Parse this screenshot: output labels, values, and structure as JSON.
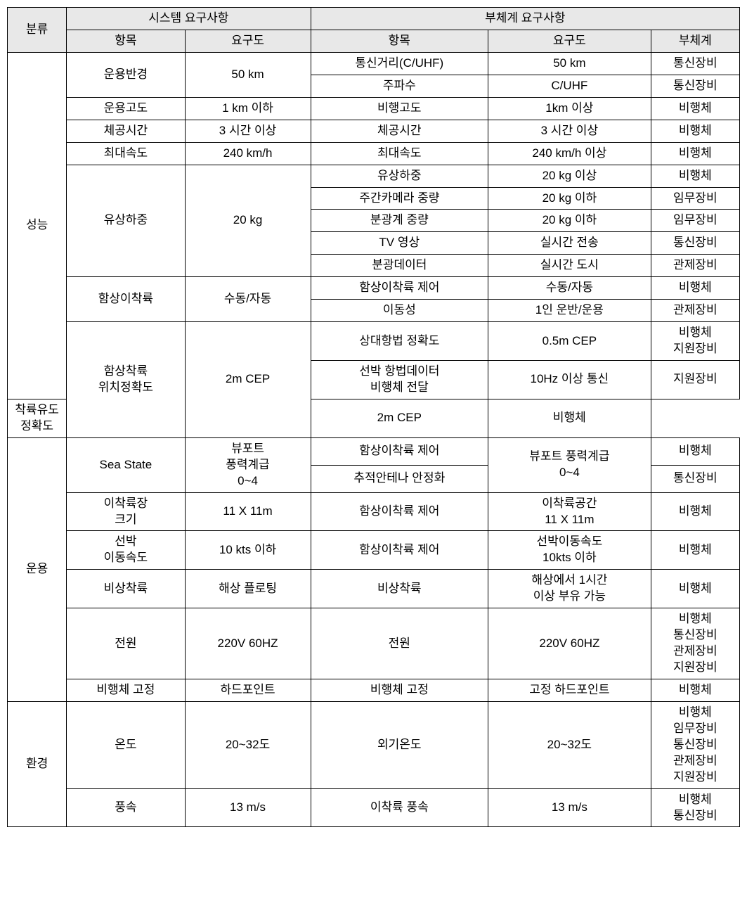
{
  "header": {
    "category": "분류",
    "system_req": "시스템 요구사항",
    "subsystem_req": "부체계 요구사항",
    "item": "항목",
    "req": "요구도",
    "subsystem": "부체계"
  },
  "cat_perf": "성능",
  "cat_ops": "운용",
  "cat_env": "환경",
  "r": {
    "p1_sys_item": "운용반경",
    "p1_sys_req": "50 km",
    "p1a": "통신거리(C/UHF)",
    "p1a_req": "50 km",
    "p1a_sub": "통신장비",
    "p1b": "주파수",
    "p1b_req": "C/UHF",
    "p1b_sub": "통신장비",
    "p2_sys_item": "운용고도",
    "p2_sys_req": "1 km 이하",
    "p2": "비행고도",
    "p2_req": "1km 이상",
    "p2_sub": "비행체",
    "p3_sys_item": "체공시간",
    "p3_sys_req": "3 시간 이상",
    "p3": "체공시간",
    "p3_req": "3 시간 이상",
    "p3_sub": "비행체",
    "p4_sys_item": "최대속도",
    "p4_sys_req": "240 km/h",
    "p4": "최대속도",
    "p4_req": "240 km/h 이상",
    "p4_sub": "비행체",
    "p5_sys_item": "유상하중",
    "p5_sys_req": "20 kg",
    "p5a": "유상하중",
    "p5a_req": "20 kg 이상",
    "p5a_sub": "비행체",
    "p5b": "주간카메라 중량",
    "p5b_req": "20 kg 이하",
    "p5b_sub": "임무장비",
    "p5c": "분광계 중량",
    "p5c_req": "20 kg 이하",
    "p5c_sub": "임무장비",
    "p5d": "TV 영상",
    "p5d_req": "실시간 전송",
    "p5d_sub": "통신장비",
    "p5e": "분광데이터",
    "p5e_req": "실시간 도시",
    "p5e_sub": "관제장비",
    "p6_sys_item": "함상이착륙",
    "p6_sys_req": "수동/자동",
    "p6a": "함상이착륙 제어",
    "p6a_req": "수동/자동",
    "p6a_sub": "비행체",
    "p6b": "이동성",
    "p6b_req": "1인 운반/운용",
    "p6b_sub": "관제장비",
    "p7_sys_item": "함상착륙\n위치정확도",
    "p7_sys_req": "2m CEP",
    "p7a": "상대항법 정확도",
    "p7a_req": "0.5m CEP",
    "p7a_sub": "비행체\n지원장비",
    "p7b": "선박 항법데이터\n비행체 전달",
    "p7b_req": "10Hz 이상 통신",
    "p7b_sub": "지원장비",
    "p7c": "착륙유도 정확도",
    "p7c_req": "2m CEP",
    "p7c_sub": "비행체",
    "o1_sys_item": "Sea State",
    "o1_sys_req": "뷰포트\n풍력계급\n0~4",
    "o1a": "함상이착륙 제어",
    "o1_req": "뷰포트 풍력계급\n0~4",
    "o1a_sub": "비행체",
    "o1b": "추적안테나 안정화",
    "o1b_sub": "통신장비",
    "o2_sys_item": "이착륙장\n크기",
    "o2_sys_req": "11 X 11m",
    "o2": "함상이착륙 제어",
    "o2_req": "이착륙공간\n11 X 11m",
    "o2_sub": "비행체",
    "o3_sys_item": "선박\n이동속도",
    "o3_sys_req": "10 kts 이하",
    "o3": "함상이착륙 제어",
    "o3_req": "선박이동속도\n10kts 이하",
    "o3_sub": "비행체",
    "o4_sys_item": "비상착륙",
    "o4_sys_req": "해상  플로팅",
    "o4": "비상착륙",
    "o4_req": "해상에서 1시간\n이상 부유 가능",
    "o4_sub": "비행체",
    "o5_sys_item": "전원",
    "o5_sys_req": "220V 60HZ",
    "o5": "전원",
    "o5_req": "220V  60HZ",
    "o5_sub": "비행체\n통신장비\n관제장비\n지원장비",
    "o6_sys_item": "비행체 고정",
    "o6_sys_req": "하드포인트",
    "o6": "비행체 고정",
    "o6_req": "고정  하드포인트",
    "o6_sub": "비행체",
    "e1_sys_item": "온도",
    "e1_sys_req": "20~32도",
    "e1": "외기온도",
    "e1_req": "20~32도",
    "e1_sub": "비행체\n임무장비\n통신장비\n관제장비\n지원장비",
    "e2_sys_item": "풍속",
    "e2_sys_req": "13 m/s",
    "e2": "이착륙 풍속",
    "e2_req": "13 m/s",
    "e2_sub": "비행체\n통신장비"
  }
}
